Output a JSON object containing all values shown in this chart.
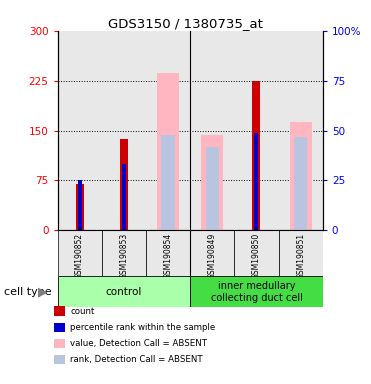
{
  "title": "GDS3150 / 1380735_at",
  "samples": [
    "GSM190852",
    "GSM190853",
    "GSM190854",
    "GSM190849",
    "GSM190850",
    "GSM190851"
  ],
  "red_values": [
    70,
    138,
    0,
    0,
    225,
    0
  ],
  "blue_values": [
    75,
    100,
    0,
    0,
    147,
    0
  ],
  "pink_values": [
    0,
    0,
    237,
    143,
    0,
    163
  ],
  "lavender_values": [
    0,
    0,
    143,
    125,
    0,
    140
  ],
  "left_ylim": [
    0,
    300
  ],
  "right_ylim": [
    0,
    100
  ],
  "left_yticks": [
    0,
    75,
    150,
    225,
    300
  ],
  "right_yticks": [
    0,
    25,
    50,
    75,
    100
  ],
  "right_yticklabels": [
    "0",
    "25",
    "50",
    "75",
    "100%"
  ],
  "pink_color": "#ffb6c1",
  "lavender_color": "#b8c4e0",
  "red_color": "#cc0000",
  "blue_color": "#0000cc",
  "bg_color": "#e8e8e8",
  "plot_bg": "#ffffff",
  "group1_color": "#aaffaa",
  "group2_color": "#44dd44",
  "legend_items": [
    {
      "color": "#cc0000",
      "label": "count"
    },
    {
      "color": "#0000cc",
      "label": "percentile rank within the sample"
    },
    {
      "color": "#ffb6c1",
      "label": "value, Detection Call = ABSENT"
    },
    {
      "color": "#b8c4e0",
      "label": "rank, Detection Call = ABSENT"
    }
  ]
}
